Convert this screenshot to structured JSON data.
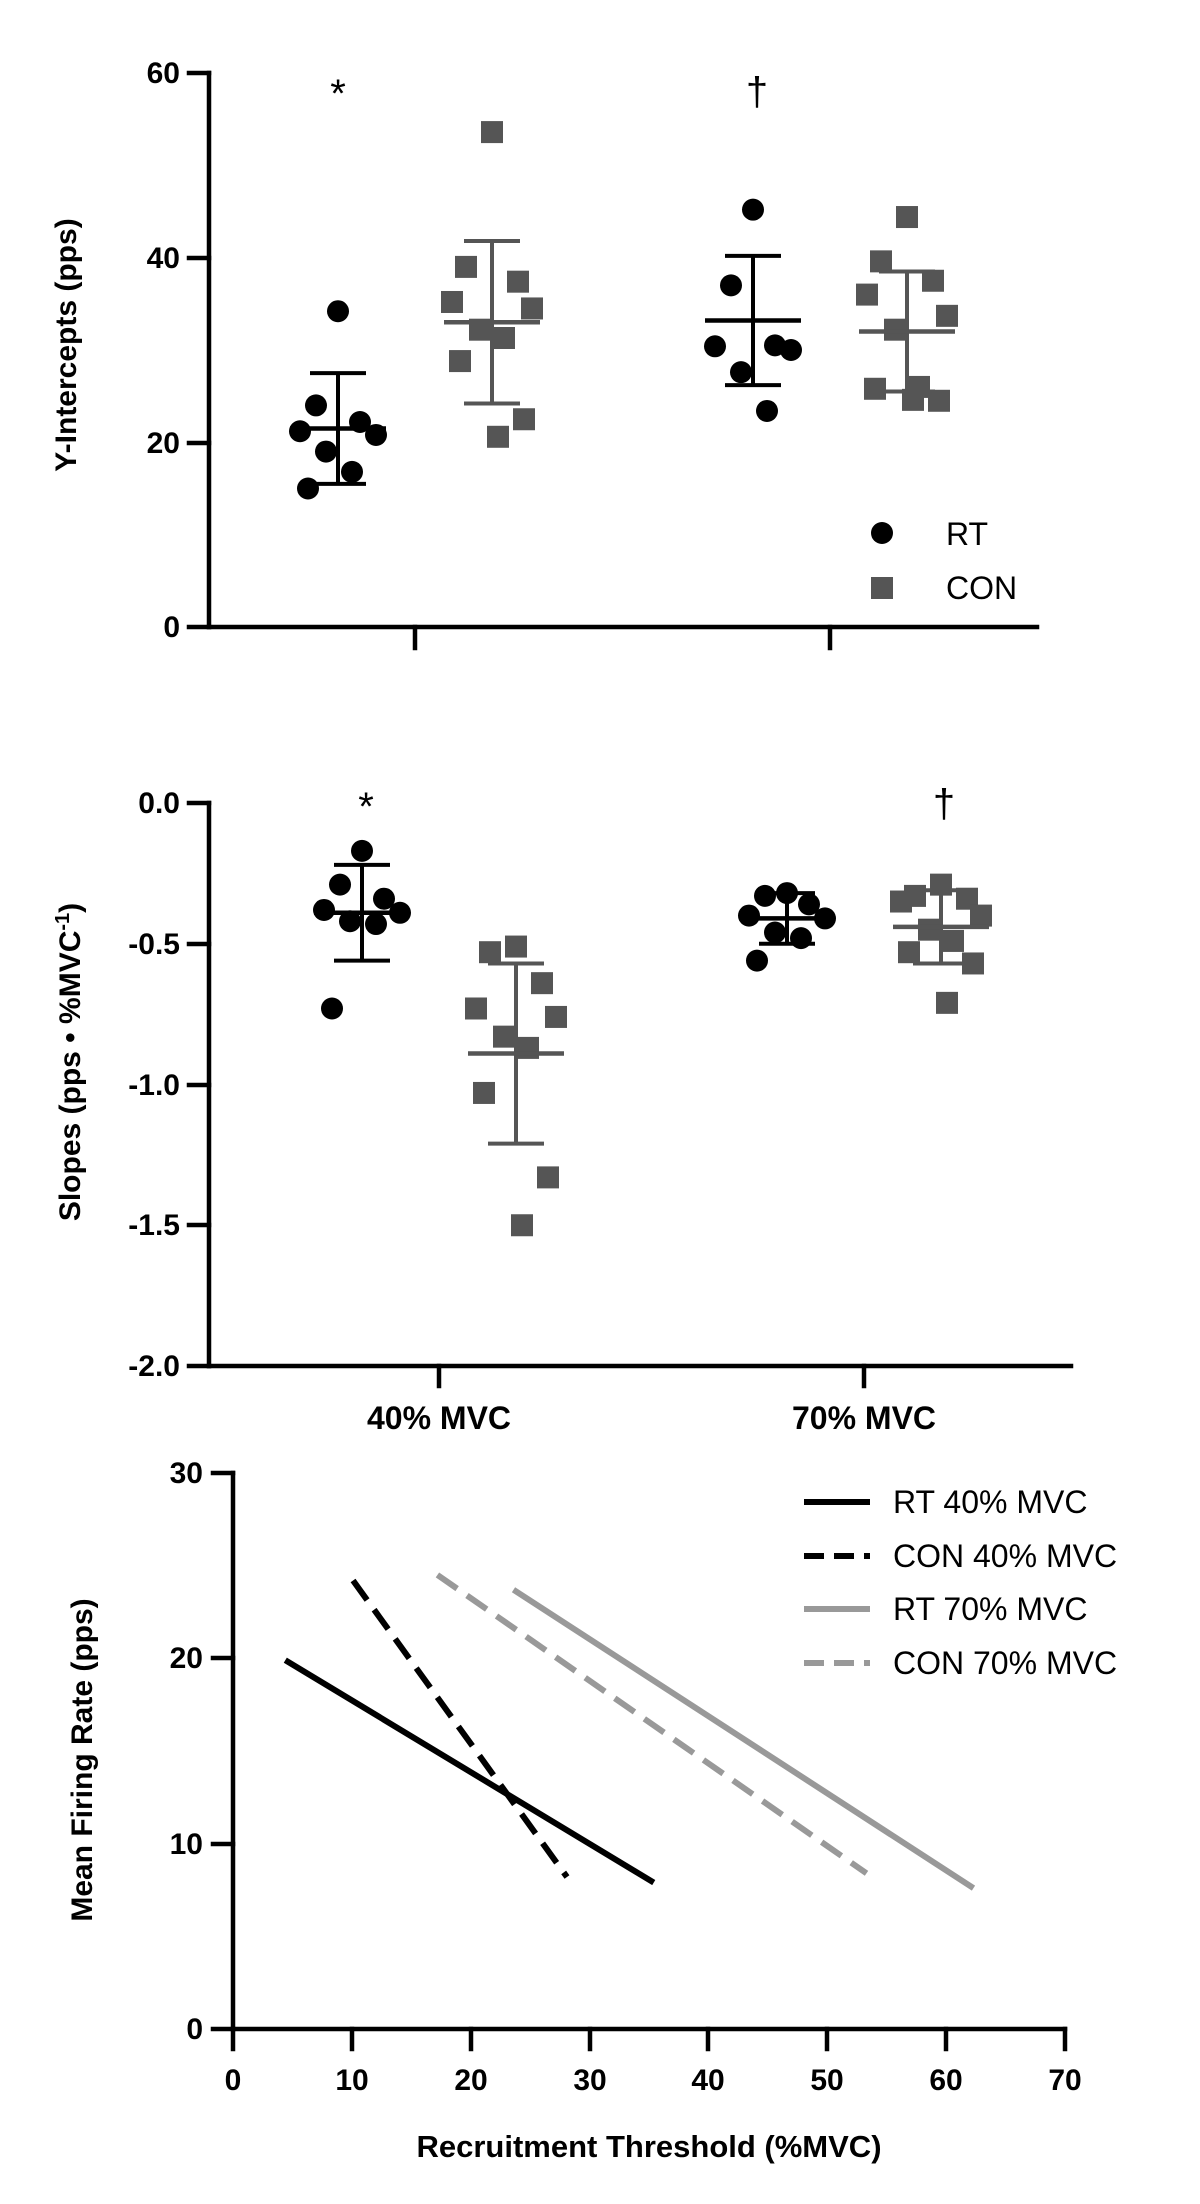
{
  "chart_data": [
    {
      "type": "scatter",
      "panel": "top",
      "ylabel": "Y-Intercepts (pps)",
      "ylim": [
        0,
        60
      ],
      "yticks": [
        "0",
        "20",
        "40",
        "60"
      ],
      "legend": [
        {
          "label": "RT",
          "marker": "circle",
          "color": "#000000"
        },
        {
          "label": "CON",
          "marker": "square",
          "color": "#555555"
        }
      ],
      "groups": [
        {
          "name": "RT 40% MVC",
          "series": "RT",
          "category": 0,
          "mean": 21.5,
          "sd": 6.0,
          "points": [
            34.2,
            24.0,
            22.2,
            21.2,
            20.8,
            19.0,
            16.8,
            15.0
          ]
        },
        {
          "name": "CON 40% MVC",
          "series": "CON",
          "category": 0,
          "mean": 33.0,
          "sd": 8.8,
          "points": [
            53.6,
            39.0,
            37.4,
            35.2,
            34.5,
            32.2,
            31.3,
            28.8,
            22.5,
            20.6
          ]
        },
        {
          "name": "RT 70% MVC",
          "series": "RT",
          "category": 1,
          "mean": 33.2,
          "sd": 7.0,
          "points": [
            45.2,
            37.0,
            30.5,
            30.4,
            30.0,
            27.6,
            23.4
          ]
        },
        {
          "name": "CON 70% MVC",
          "series": "CON",
          "category": 1,
          "mean": 32.0,
          "sd": 6.5,
          "points": [
            44.4,
            39.6,
            37.5,
            36.0,
            33.7,
            32.2,
            26.0,
            25.8,
            24.5,
            24.6
          ]
        }
      ],
      "annotations": [
        {
          "text": "*",
          "category": 0,
          "series": "RT"
        },
        {
          "text": "†",
          "category": 1,
          "series": "RT"
        }
      ]
    },
    {
      "type": "scatter",
      "panel": "middle",
      "ylabel_main": "Slopes (pps • %MVC",
      "ylabel_sup": "-1",
      "ylabel_end": ")",
      "ylim": [
        -2.0,
        0.0
      ],
      "yticks": [
        "0.0",
        "-0.5",
        "-1.0",
        "-1.5",
        "-2.0"
      ],
      "categories": [
        "40% MVC",
        "70% MVC"
      ],
      "groups": [
        {
          "name": "RT 40% MVC",
          "series": "RT",
          "category": 0,
          "mean": -0.39,
          "sd": 0.17,
          "points": [
            -0.17,
            -0.29,
            -0.34,
            -0.38,
            -0.39,
            -0.42,
            -0.43,
            -0.73
          ]
        },
        {
          "name": "CON 40% MVC",
          "series": "CON",
          "category": 0,
          "mean": -0.89,
          "sd": 0.32,
          "points": [
            -0.51,
            -0.53,
            -0.64,
            -0.73,
            -0.76,
            -0.83,
            -0.87,
            -1.03,
            -1.33,
            -1.5
          ]
        },
        {
          "name": "RT 70% MVC",
          "series": "RT",
          "category": 1,
          "mean": -0.41,
          "sd": 0.09,
          "points": [
            -0.32,
            -0.33,
            -0.36,
            -0.4,
            -0.41,
            -0.46,
            -0.48,
            -0.56
          ]
        },
        {
          "name": "CON 70% MVC",
          "series": "CON",
          "category": 1,
          "mean": -0.44,
          "sd": 0.13,
          "points": [
            -0.29,
            -0.33,
            -0.34,
            -0.35,
            -0.4,
            -0.45,
            -0.49,
            -0.53,
            -0.57,
            -0.71
          ]
        }
      ],
      "annotations": [
        {
          "text": "*",
          "category": 0,
          "series": "RT"
        },
        {
          "text": "†",
          "category": 1,
          "series": "CON"
        }
      ]
    },
    {
      "type": "line",
      "panel": "bottom",
      "xlabel": "Recruitment Threshold (%MVC)",
      "ylabel": "Mean Firing Rate (pps)",
      "xlim": [
        0,
        70
      ],
      "ylim": [
        0,
        30
      ],
      "xticks": [
        "0",
        "10",
        "20",
        "30",
        "40",
        "50",
        "60",
        "70"
      ],
      "yticks": [
        "0",
        "10",
        "20",
        "30"
      ],
      "series": [
        {
          "name": "RT 40% MVC",
          "color": "#000000",
          "dash": false,
          "x": [
            4.4,
            35.4
          ],
          "y": [
            19.9,
            7.9
          ]
        },
        {
          "name": "CON 40% MVC",
          "color": "#000000",
          "dash": true,
          "x": [
            10.1,
            28.1
          ],
          "y": [
            24.2,
            8.2
          ]
        },
        {
          "name": "RT 70% MVC",
          "color": "#999999",
          "dash": false,
          "x": [
            23.6,
            62.3
          ],
          "y": [
            23.7,
            7.6
          ]
        },
        {
          "name": "CON 70% MVC",
          "color": "#999999",
          "dash": true,
          "x": [
            17.2,
            53.3
          ],
          "y": [
            24.5,
            8.4
          ]
        }
      ]
    }
  ]
}
